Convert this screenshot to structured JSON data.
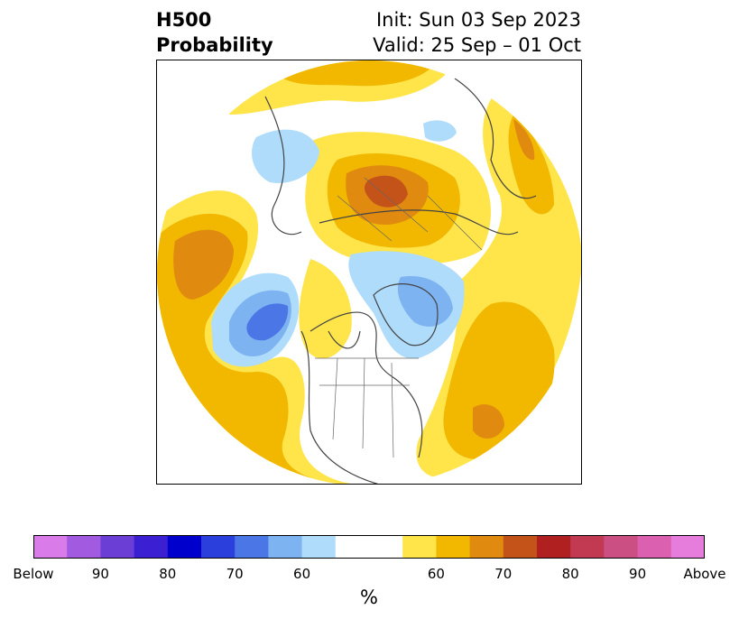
{
  "title": {
    "left_line1": "H500",
    "left_line2": "Probability",
    "right_line1": "Init: Sun 03 Sep 2023",
    "right_line2": "Valid: 25 Sep – 01 Oct"
  },
  "colorbar": {
    "colors": [
      "#d97be8",
      "#a25ae0",
      "#6b3fd6",
      "#3a20d2",
      "#0000cc",
      "#2a3fdb",
      "#4b76e6",
      "#7eb3f2",
      "#afdcfb",
      "#ffffff",
      "#ffe44a",
      "#f2b800",
      "#e08a10",
      "#c4531a",
      "#b02020",
      "#c23a52",
      "#cc4f84",
      "#dc60b0",
      "#e67ddc"
    ],
    "tick_labels": [
      "Below",
      "90",
      "80",
      "70",
      "60",
      "60",
      "70",
      "80",
      "90",
      "Above"
    ],
    "unit": "%"
  }
}
